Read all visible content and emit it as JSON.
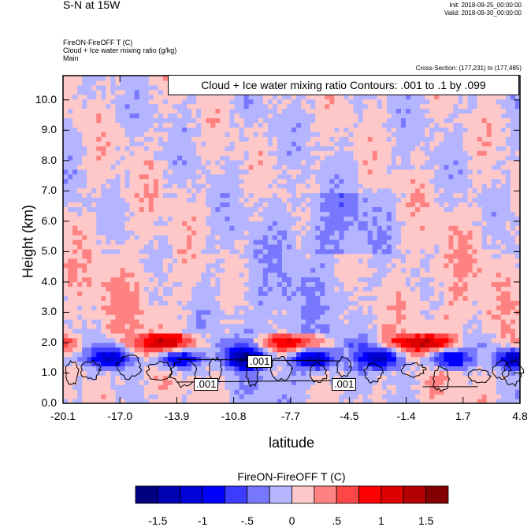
{
  "header": {
    "title": "S-N at 15W",
    "init": "Init: 2018-09-25_00:00:00",
    "valid": "Valid: 2018-09-30_00:00:00",
    "field_line1": "FireON-FireOFF T   (C)",
    "field_line2": "Cloud + Ice water mixing ratio   (g/kg)",
    "field_line3": "Main",
    "cross_section": "Cross-Section: (177,231) to (177,485)"
  },
  "chart_data": {
    "type": "heatmap",
    "title": "S-N at 15W",
    "xlabel": "latitude",
    "ylabel": "Height (km)",
    "xlim": [
      -20.1,
      4.8
    ],
    "ylim": [
      0.0,
      10.8
    ],
    "x_ticks": [
      "-20.1",
      "-17.0",
      "-13.9",
      "-10.8",
      "-7.7",
      "-4.5",
      "-1.4",
      "1.7",
      "4.8"
    ],
    "y_ticks": [
      "0.0",
      "1.0",
      "2.0",
      "3.0",
      "4.0",
      "5.0",
      "6.0",
      "7.0",
      "8.0",
      "9.0",
      "10.0"
    ],
    "contour_legend": "Cloud + Ice water mixing ratio Contours: .001 to .1 by .099",
    "contour_labels": [
      ".001",
      ".001",
      ".001"
    ],
    "colorbar": {
      "title": "FireON-FireOFF T  (C)",
      "labels": [
        "-1.5",
        "-1",
        "-.5",
        "0",
        ".5",
        "1",
        "1.5"
      ],
      "colors": [
        "#000080",
        "#0000b4",
        "#0000d8",
        "#0000ff",
        "#3c3cff",
        "#7878ff",
        "#b4b4ff",
        "#ffc8c8",
        "#ff8282",
        "#ff4646",
        "#ff0000",
        "#dc0000",
        "#b40000",
        "#820000"
      ]
    },
    "colors": {
      "neutral_pos": "#ffc8c8",
      "neutral_neg": "#b4b4ff"
    }
  }
}
